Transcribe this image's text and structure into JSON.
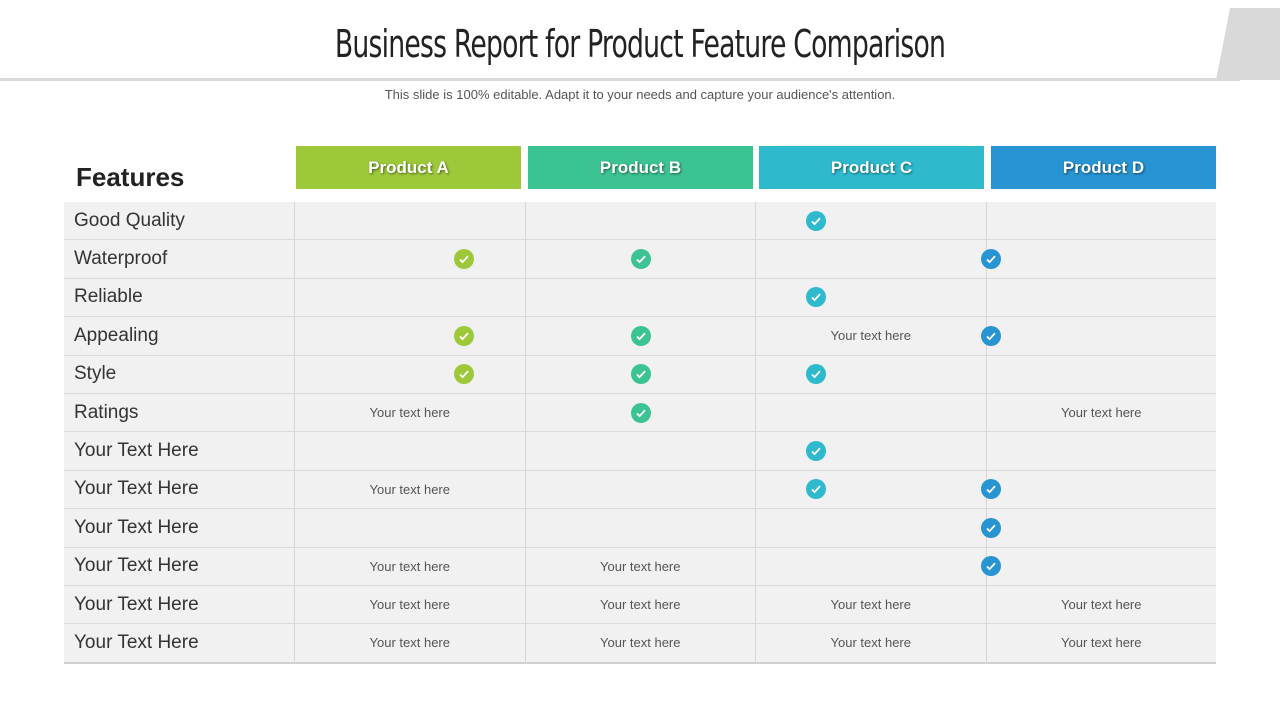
{
  "title": "Business Report for Product Feature Comparison",
  "subtitle": "This slide is 100% editable. Adapt it to your needs and capture your audience's attention.",
  "features_label": "Features",
  "products": [
    {
      "label": "Product A",
      "color": "#9dc83a"
    },
    {
      "label": "Product B",
      "color": "#3cc392"
    },
    {
      "label": "Product C",
      "color": "#2fb9cd"
    },
    {
      "label": "Product D",
      "color": "#2894d2"
    }
  ],
  "rows": [
    {
      "feature": "Good Quality",
      "cells": [
        "",
        "",
        "check",
        ""
      ]
    },
    {
      "feature": "Waterproof",
      "cells": [
        "check",
        "check",
        "",
        "check"
      ]
    },
    {
      "feature": "Reliable",
      "cells": [
        "",
        "",
        "check",
        ""
      ]
    },
    {
      "feature": "Appealing",
      "cells": [
        "check",
        "check",
        "Your text here",
        "check"
      ]
    },
    {
      "feature": "Style",
      "cells": [
        "check",
        "check",
        "check",
        ""
      ]
    },
    {
      "feature": "Ratings",
      "cells": [
        "Your text here",
        "check",
        "",
        "Your text here"
      ]
    },
    {
      "feature": "Your Text Here",
      "cells": [
        "",
        "",
        "check",
        ""
      ]
    },
    {
      "feature": "Your Text Here",
      "cells": [
        "Your text here",
        "",
        "check",
        "check"
      ]
    },
    {
      "feature": "Your Text Here",
      "cells": [
        "",
        "",
        "",
        "check"
      ]
    },
    {
      "feature": "Your Text Here",
      "cells": [
        "Your text here",
        "Your text here",
        "",
        "check"
      ]
    },
    {
      "feature": "Your Text Here",
      "cells": [
        "Your text here",
        "Your text here",
        "Your text here",
        "Your text here"
      ]
    },
    {
      "feature": "Your Text Here",
      "cells": [
        "Your text here",
        "Your text here",
        "Your text here",
        "Your text here"
      ]
    }
  ]
}
